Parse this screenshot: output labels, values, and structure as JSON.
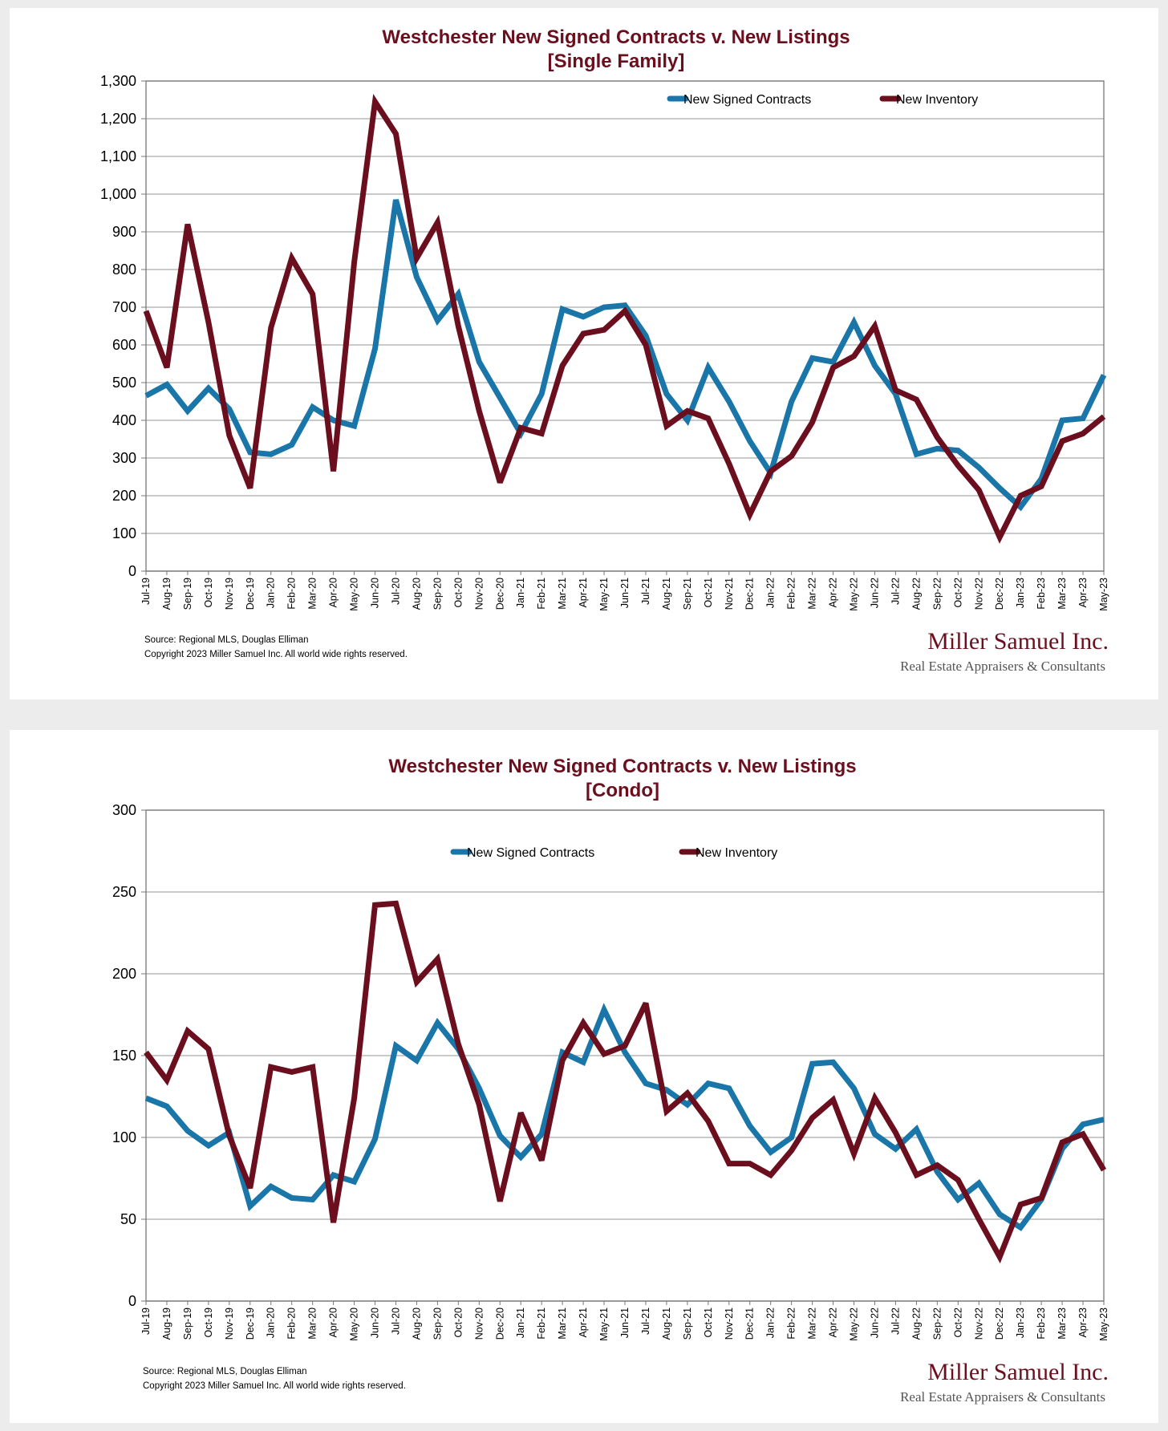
{
  "chart_data": [
    {
      "type": "line",
      "title": "Westchester New Signed Contracts v. New Listings",
      "subtitle": "[Single Family]",
      "ylim": [
        0,
        1300
      ],
      "yticks": [
        0,
        100,
        200,
        300,
        400,
        500,
        600,
        700,
        800,
        900,
        1000,
        1100,
        1200,
        1300
      ],
      "ytick_labels": [
        "0",
        "100",
        "200",
        "300",
        "400",
        "500",
        "600",
        "700",
        "800",
        "900",
        "1,000",
        "1,100",
        "1,200",
        "1,300"
      ],
      "grid": true,
      "legend_position": "top",
      "categories": [
        "Jul-19",
        "Aug-19",
        "Sep-19",
        "Oct-19",
        "Nov-19",
        "Dec-19",
        "Jan-20",
        "Feb-20",
        "Mar-20",
        "Apr-20",
        "May-20",
        "Jun-20",
        "Jul-20",
        "Aug-20",
        "Sep-20",
        "Oct-20",
        "Nov-20",
        "Dec-20",
        "Jan-21",
        "Feb-21",
        "Mar-21",
        "Apr-21",
        "May-21",
        "Jun-21",
        "Jul-21",
        "Aug-21",
        "Sep-21",
        "Oct-21",
        "Nov-21",
        "Dec-21",
        "Jan-22",
        "Feb-22",
        "Mar-22",
        "Apr-22",
        "May-22",
        "Jun-22",
        "Jul-22",
        "Aug-22",
        "Sep-22",
        "Oct-22",
        "Nov-22",
        "Dec-22",
        "Jan-23",
        "Feb-23",
        "Mar-23",
        "Apr-23",
        "May-23"
      ],
      "series": [
        {
          "name": "New Signed Contracts",
          "color": "#1a76a8",
          "values": [
            465,
            495,
            425,
            485,
            430,
            315,
            310,
            335,
            435,
            400,
            385,
            590,
            985,
            780,
            665,
            735,
            555,
            460,
            365,
            470,
            695,
            675,
            700,
            705,
            625,
            470,
            400,
            540,
            450,
            345,
            260,
            450,
            565,
            555,
            660,
            545,
            470,
            310,
            325,
            320,
            275,
            220,
            170,
            245,
            400,
            405,
            520
          ]
        },
        {
          "name": "New Inventory",
          "color": "#6b0f1e",
          "values": [
            690,
            540,
            920,
            660,
            360,
            220,
            645,
            830,
            735,
            265,
            820,
            1245,
            1160,
            830,
            925,
            650,
            425,
            235,
            380,
            365,
            545,
            630,
            640,
            690,
            600,
            385,
            425,
            405,
            285,
            150,
            265,
            305,
            395,
            540,
            570,
            650,
            480,
            455,
            355,
            280,
            215,
            90,
            200,
            225,
            345,
            365,
            410
          ]
        }
      ],
      "source": "Source: Regional MLS, Douglas Elliman",
      "copyright": "Copyright 2023 Miller Samuel Inc.  All world wide rights reserved."
    },
    {
      "type": "line",
      "title": "Westchester New Signed Contracts v. New Listings",
      "subtitle": "[Condo]",
      "ylim": [
        0,
        300
      ],
      "yticks": [
        0,
        50,
        100,
        150,
        200,
        250,
        300
      ],
      "ytick_labels": [
        "0",
        "50",
        "100",
        "150",
        "200",
        "250",
        "300"
      ],
      "grid": true,
      "legend_position": "top",
      "categories": [
        "Jul-19",
        "Aug-19",
        "Sep-19",
        "Oct-19",
        "Nov-19",
        "Dec-19",
        "Jan-20",
        "Feb-20",
        "Mar-20",
        "Apr-20",
        "May-20",
        "Jun-20",
        "Jul-20",
        "Aug-20",
        "Sep-20",
        "Oct-20",
        "Nov-20",
        "Dec-20",
        "Jan-21",
        "Feb-21",
        "Mar-21",
        "Apr-21",
        "May-21",
        "Jun-21",
        "Jul-21",
        "Aug-21",
        "Sep-21",
        "Oct-21",
        "Nov-21",
        "Dec-21",
        "Jan-22",
        "Feb-22",
        "Mar-22",
        "Apr-22",
        "May-22",
        "Jun-22",
        "Jul-22",
        "Aug-22",
        "Sep-22",
        "Oct-22",
        "Nov-22",
        "Dec-22",
        "Jan-23",
        "Feb-23",
        "Mar-23",
        "Apr-23",
        "May-23"
      ],
      "series": [
        {
          "name": "New Signed Contracts",
          "color": "#1a76a8",
          "values": [
            124,
            119,
            104,
            95,
            103,
            58,
            70,
            63,
            62,
            77,
            73,
            99,
            156,
            147,
            170,
            154,
            130,
            101,
            88,
            102,
            152,
            146,
            178,
            152,
            133,
            129,
            120,
            133,
            130,
            107,
            91,
            100,
            145,
            146,
            130,
            102,
            93,
            105,
            79,
            62,
            72,
            53,
            45,
            62,
            93,
            108,
            111
          ]
        },
        {
          "name": "New Inventory",
          "color": "#6b0f1e",
          "values": [
            152,
            135,
            165,
            154,
            101,
            69,
            143,
            140,
            143,
            48,
            124,
            242,
            243,
            195,
            209,
            157,
            120,
            61,
            115,
            86,
            147,
            170,
            151,
            156,
            182,
            116,
            127,
            110,
            84,
            84,
            77,
            92,
            112,
            123,
            90,
            124,
            103,
            77,
            83,
            74,
            50,
            27,
            59,
            63,
            97,
            102,
            80
          ]
        }
      ],
      "source": "Source: Regional MLS, Douglas Elliman",
      "copyright": "Copyright 2023 Miller Samuel Inc.  All world wide rights reserved."
    }
  ],
  "logo": {
    "name": "Miller Samuel Inc.",
    "tagline": "Real Estate Appraisers & Consultants"
  }
}
